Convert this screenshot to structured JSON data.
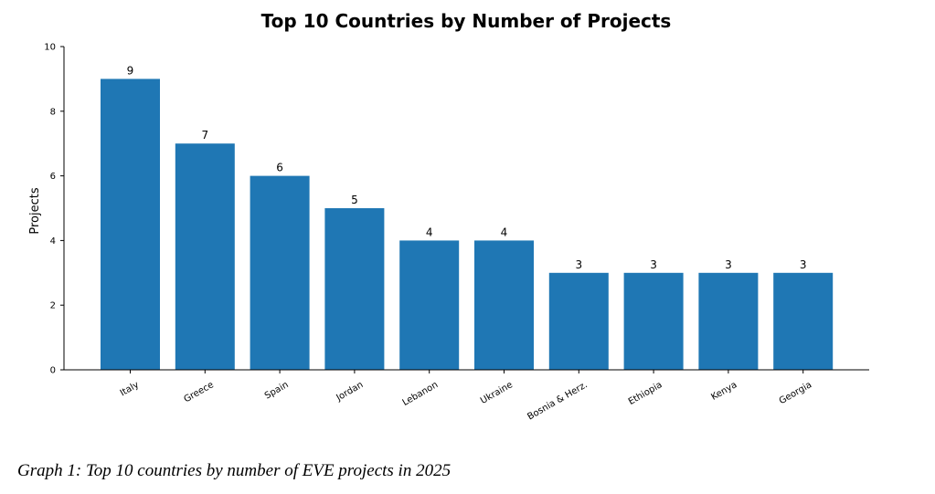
{
  "chart_data": {
    "type": "bar",
    "title": "Top 10 Countries by Number of Projects",
    "xlabel": "",
    "ylabel": "Projects",
    "categories": [
      "Italy",
      "Greece",
      "Spain",
      "Jordan",
      "Lebanon",
      "Ukraine",
      "Bosnia & Herz.",
      "Ethiopia",
      "Kenya",
      "Georgia"
    ],
    "values": [
      9,
      7,
      6,
      5,
      4,
      4,
      3,
      3,
      3,
      3
    ],
    "ylim": [
      0,
      10
    ],
    "yticks": [
      0,
      2,
      4,
      6,
      8,
      10
    ],
    "bar_color": "#1f77b4",
    "grid": false,
    "data_labels": true
  },
  "caption": "Graph 1: Top 10 countries by number of EVE projects in 2025"
}
